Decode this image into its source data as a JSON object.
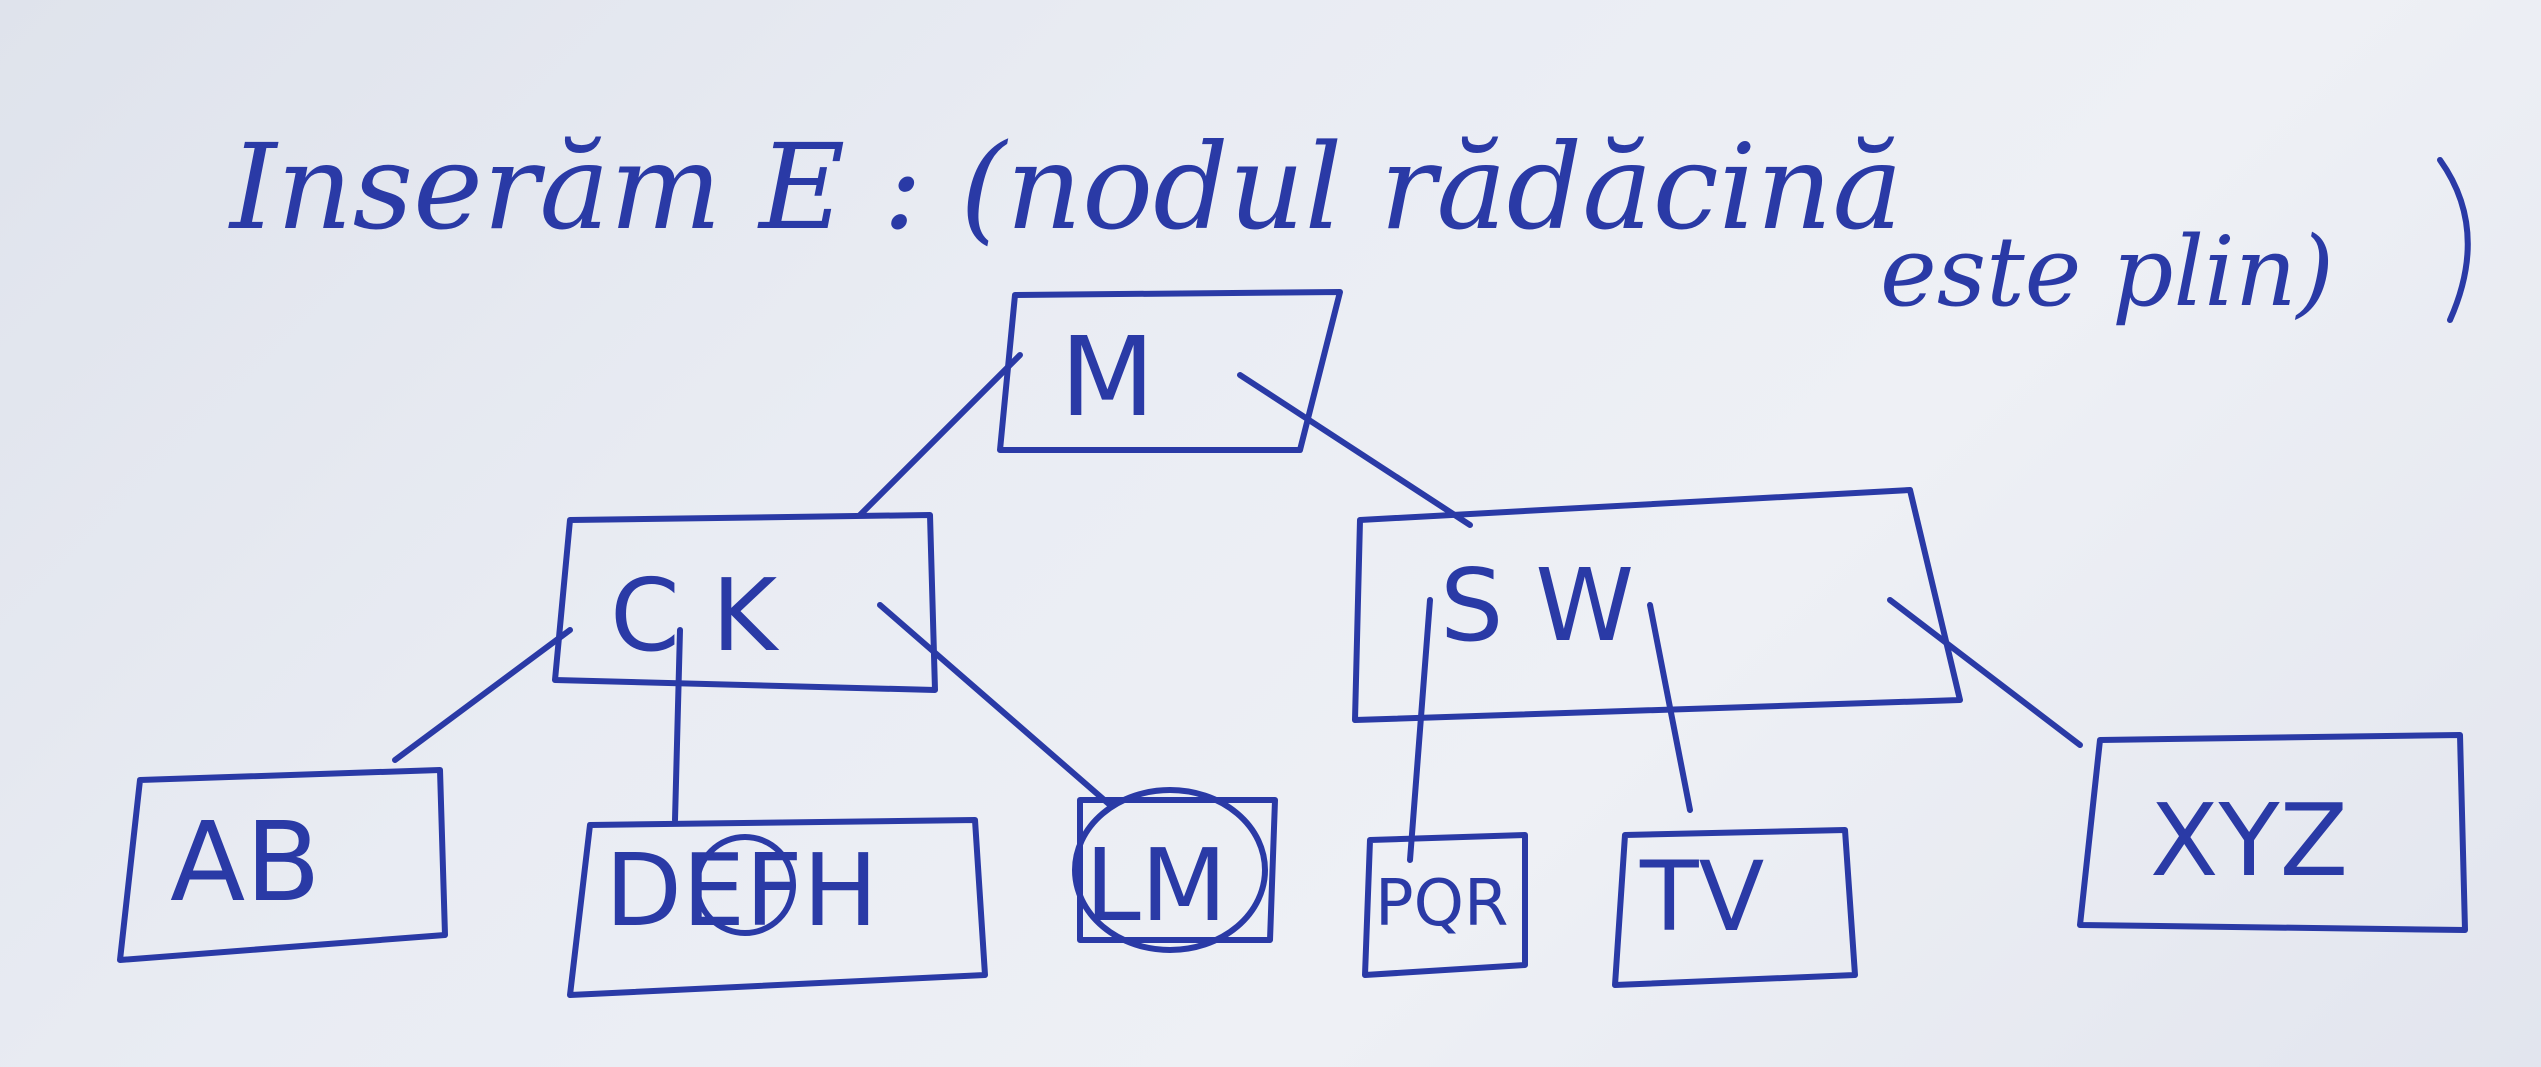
{
  "title": {
    "line1": "Inserăm E : (nodul rădăcină",
    "line2": "este plin)"
  },
  "tree": {
    "root": {
      "label": "M"
    },
    "level1_left": {
      "label": "C K"
    },
    "level1_right": {
      "label": "S W"
    },
    "leaves": [
      {
        "id": "ab",
        "label": "AB"
      },
      {
        "id": "defh",
        "label": "DEFH",
        "circled": "E"
      },
      {
        "id": "lm",
        "label": "LM",
        "circled": "LM"
      },
      {
        "id": "pqr",
        "label": "PQR"
      },
      {
        "id": "tv",
        "label": "TV"
      },
      {
        "id": "xyz",
        "label": "XYZ"
      }
    ]
  },
  "colors": {
    "ink": "#2a3aa6",
    "paper": "#e9ecf3"
  }
}
